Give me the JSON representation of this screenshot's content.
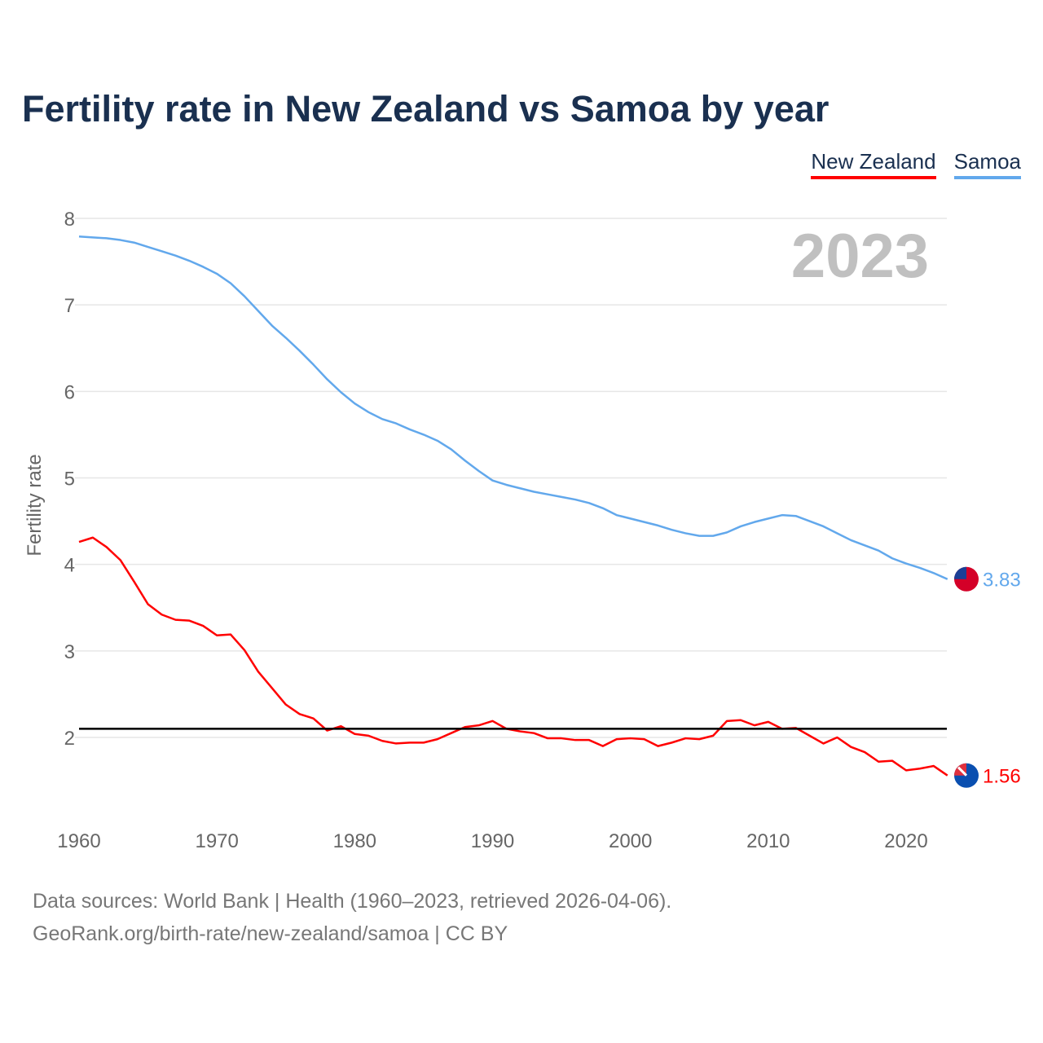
{
  "chart_data": {
    "type": "line",
    "title": "Fertility rate in New Zealand vs Samoa by year",
    "xlabel": "",
    "ylabel": "Fertility rate",
    "xlim": [
      1960,
      2023
    ],
    "ylim": [
      1.2,
      8.2
    ],
    "xticks": [
      1960,
      1970,
      1980,
      1990,
      2000,
      2010,
      2020
    ],
    "yticks": [
      2,
      3,
      4,
      5,
      6,
      7,
      8
    ],
    "grid": true,
    "legend": "top-right",
    "year_label": "2023",
    "reference_line": 2.1,
    "x": [
      1960,
      1961,
      1962,
      1963,
      1964,
      1965,
      1966,
      1967,
      1968,
      1969,
      1970,
      1971,
      1972,
      1973,
      1974,
      1975,
      1976,
      1977,
      1978,
      1979,
      1980,
      1981,
      1982,
      1983,
      1984,
      1985,
      1986,
      1987,
      1988,
      1989,
      1990,
      1991,
      1992,
      1993,
      1994,
      1995,
      1996,
      1997,
      1998,
      1999,
      2000,
      2001,
      2002,
      2003,
      2004,
      2005,
      2006,
      2007,
      2008,
      2009,
      2010,
      2011,
      2012,
      2013,
      2014,
      2015,
      2016,
      2017,
      2018,
      2019,
      2020,
      2021,
      2022,
      2023
    ],
    "series": [
      {
        "name": "New Zealand",
        "color": "#ff0000",
        "end_label": "1.56",
        "values": [
          4.26,
          4.31,
          4.2,
          4.05,
          3.8,
          3.54,
          3.42,
          3.36,
          3.35,
          3.29,
          3.18,
          3.19,
          3.01,
          2.76,
          2.57,
          2.38,
          2.27,
          2.22,
          2.08,
          2.13,
          2.04,
          2.02,
          1.96,
          1.93,
          1.94,
          1.94,
          1.98,
          2.05,
          2.12,
          2.14,
          2.19,
          2.1,
          2.07,
          2.05,
          1.99,
          1.99,
          1.97,
          1.97,
          1.9,
          1.98,
          1.99,
          1.98,
          1.9,
          1.94,
          1.99,
          1.98,
          2.02,
          2.19,
          2.2,
          2.14,
          2.18,
          2.1,
          2.11,
          2.02,
          1.93,
          2.0,
          1.89,
          1.83,
          1.72,
          1.73,
          1.62,
          1.64,
          1.67,
          1.56
        ]
      },
      {
        "name": "Samoa",
        "color": "#62a8ec",
        "end_label": "3.83",
        "values": [
          7.79,
          7.78,
          7.77,
          7.75,
          7.72,
          7.67,
          7.62,
          7.57,
          7.51,
          7.44,
          7.36,
          7.25,
          7.1,
          6.93,
          6.76,
          6.62,
          6.47,
          6.31,
          6.14,
          5.99,
          5.86,
          5.76,
          5.68,
          5.63,
          5.56,
          5.5,
          5.43,
          5.33,
          5.2,
          5.08,
          4.97,
          4.92,
          4.88,
          4.84,
          4.81,
          4.78,
          4.75,
          4.71,
          4.65,
          4.57,
          4.53,
          4.49,
          4.45,
          4.4,
          4.36,
          4.33,
          4.33,
          4.37,
          4.44,
          4.49,
          4.53,
          4.57,
          4.56,
          4.5,
          4.44,
          4.36,
          4.28,
          4.22,
          4.16,
          4.07,
          4.01,
          3.96,
          3.9,
          3.83
        ]
      }
    ]
  },
  "footer": {
    "line1": "Data sources: World Bank | Health (1960–2023, retrieved 2026-04-06).",
    "line2": "GeoRank.org/birth-rate/new-zealand/samoa | CC BY"
  }
}
